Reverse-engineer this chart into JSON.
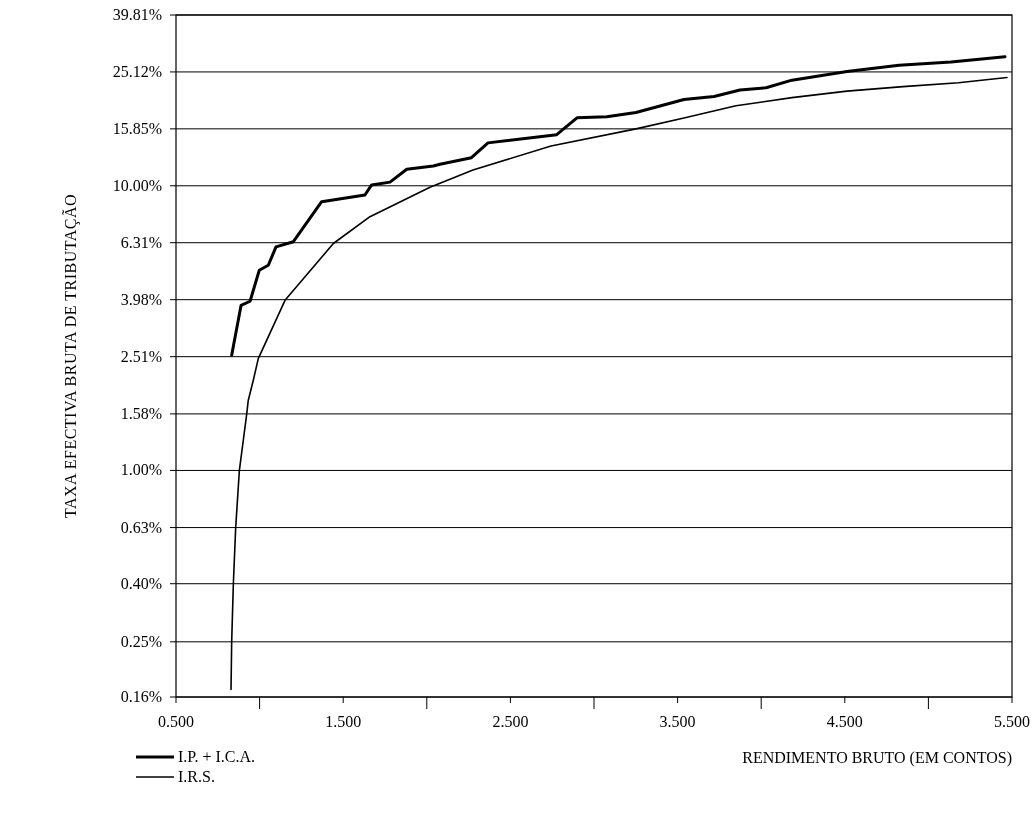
{
  "chart_data": {
    "type": "line",
    "xlabel": "RENDIMENTO BRUTO (EM CONTOS)",
    "ylabel": "TAXA EFECTIVA BRUTA DE TRIBUTAÇÃO",
    "log": "y",
    "grid": "y",
    "legend": "bottom left",
    "marker": "none",
    "line_style": "solid",
    "xlim": [
      0.5,
      5.5
    ],
    "xticks": [
      {
        "value": 0.5,
        "label": "0.500"
      },
      {
        "value": 1,
        "label": null
      },
      {
        "value": 1.5,
        "label": "1.500"
      },
      {
        "value": 2,
        "label": null
      },
      {
        "value": 2.5,
        "label": "2.500"
      },
      {
        "value": 3,
        "label": null
      },
      {
        "value": 3.5,
        "label": "3.500"
      },
      {
        "value": 4,
        "label": null
      },
      {
        "value": 4.5,
        "label": "4.500"
      },
      {
        "value": 5,
        "label": null
      },
      {
        "value": 5.5,
        "label": "5.500"
      }
    ],
    "ylim": [
      0.16,
      39.81
    ],
    "yticks": [
      {
        "value": 0.16,
        "label": "0.16%"
      },
      {
        "value": 0.25,
        "label": "0.25%"
      },
      {
        "value": 0.4,
        "label": "0.40%"
      },
      {
        "value": 0.63,
        "label": "0.63%"
      },
      {
        "value": 1,
        "label": "1.00%"
      },
      {
        "value": 1.58,
        "label": "1.58%"
      },
      {
        "value": 2.51,
        "label": "2.51%"
      },
      {
        "value": 3.98,
        "label": "3.98%"
      },
      {
        "value": 6.31,
        "label": "6.31%"
      },
      {
        "value": 10,
        "label": "10.00%"
      },
      {
        "value": 15.85,
        "label": "15.85%"
      },
      {
        "value": 25.12,
        "label": "25.12%"
      },
      {
        "value": 39.81,
        "label": "39.81%"
      }
    ],
    "series": [
      {
        "name": "I.P. + I.C.A.",
        "color": "#000000",
        "x": [
          0.833,
          0.889,
          0.943,
          0.998,
          1.052,
          1.098,
          1.202,
          1.371,
          1.63,
          1.67,
          1.78,
          1.88,
          2.039,
          2.079,
          2.267,
          2.366,
          2.777,
          2.898,
          3.076,
          3.251,
          3.538,
          3.718,
          3.873,
          4.029,
          4.184,
          4.513,
          4.824,
          5.135,
          5.458
        ],
        "values": [
          2.54,
          3.8,
          3.93,
          5.05,
          5.26,
          6.1,
          6.36,
          8.79,
          9.28,
          10.07,
          10.3,
          11.43,
          11.74,
          11.9,
          12.55,
          14.15,
          15.12,
          17.33,
          17.47,
          18.1,
          20.1,
          20.6,
          21.7,
          22.1,
          23.5,
          25.2,
          26.5,
          27.2,
          28.4
        ]
      },
      {
        "name": "I.R.S.",
        "color": "#000000",
        "x": [
          0.829,
          0.833,
          0.843,
          0.857,
          0.879,
          0.923,
          0.932,
          0.962,
          0.992,
          1.152,
          1.441,
          1.66,
          2.019,
          2.079,
          2.276,
          2.743,
          3.251,
          3.538,
          3.849,
          4.184,
          4.513,
          4.848,
          5.18,
          5.47
        ],
        "values": [
          0.17,
          0.25,
          0.4,
          0.63,
          1.0,
          1.58,
          1.76,
          2.07,
          2.47,
          3.96,
          6.27,
          7.79,
          9.88,
          10.2,
          11.36,
          13.8,
          15.85,
          17.3,
          19.1,
          20.4,
          21.5,
          22.3,
          23.0,
          24.0
        ]
      }
    ]
  }
}
